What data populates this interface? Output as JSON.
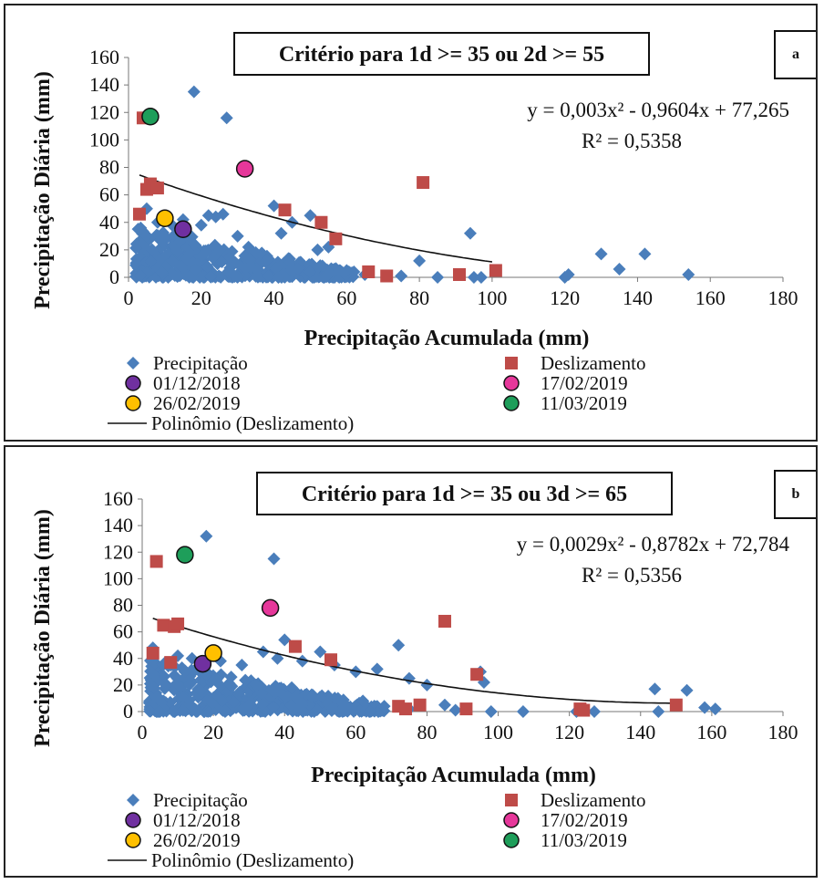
{
  "chart_data": [
    {
      "type": "scatter",
      "panel_letter": "a",
      "title": "Critério para 1d >= 35 ou 2d >= 55",
      "xlabel": "Precipitação Acumulada (mm)",
      "ylabel": "Precipitação Diária (mm)",
      "xlim": [
        0,
        180
      ],
      "ylim": [
        0,
        160
      ],
      "xticks": [
        0,
        20,
        40,
        60,
        80,
        100,
        120,
        140,
        160,
        180
      ],
      "yticks": [
        0,
        20,
        40,
        60,
        80,
        100,
        120,
        140,
        160
      ],
      "equation": "y = 0,003x² - 0,9604x + 77,265",
      "r2": "R² = 0,5358",
      "trend": {
        "name": "Polinômio (Deslizamento)",
        "a": 0.003,
        "b": -0.9604,
        "c": 77.265,
        "xrange": [
          3,
          100
        ]
      },
      "series": [
        {
          "name": "Precipitação",
          "marker": "diamond",
          "color": "#4a7ebb",
          "outliers": [
            [
              18,
              135
            ],
            [
              27,
              116
            ],
            [
              5,
              50
            ],
            [
              8,
              40
            ],
            [
              12,
              38
            ],
            [
              15,
              42
            ],
            [
              20,
              38
            ],
            [
              22,
              45
            ],
            [
              24,
              44
            ],
            [
              26,
              46
            ],
            [
              30,
              30
            ],
            [
              33,
              22
            ],
            [
              35,
              18
            ],
            [
              40,
              52
            ],
            [
              42,
              32
            ],
            [
              45,
              40
            ],
            [
              50,
              45
            ],
            [
              52,
              20
            ],
            [
              55,
              22
            ],
            [
              58,
              5
            ],
            [
              60,
              5
            ],
            [
              62,
              4
            ],
            [
              80,
              12
            ],
            [
              94,
              32
            ],
            [
              95,
              0
            ],
            [
              97,
              0
            ],
            [
              120,
              0
            ],
            [
              121,
              2
            ],
            [
              130,
              17
            ],
            [
              135,
              6
            ],
            [
              142,
              17
            ],
            [
              154,
              2
            ],
            [
              10,
              30
            ],
            [
              14,
              26
            ],
            [
              18,
              24
            ],
            [
              25,
              20
            ],
            [
              38,
              12
            ],
            [
              45,
              6
            ],
            [
              50,
              4
            ],
            [
              65,
              2
            ],
            [
              75,
              1
            ],
            [
              85,
              0
            ]
          ],
          "cloud": {
            "xmax": 60,
            "ymax": 40
          }
        },
        {
          "name": "Deslizamento",
          "marker": "square",
          "color": "#be4b48",
          "points": [
            [
              3,
              46
            ],
            [
              4,
              116
            ],
            [
              5,
              64
            ],
            [
              6,
              68
            ],
            [
              8,
              65
            ],
            [
              43,
              49
            ],
            [
              53,
              40
            ],
            [
              57,
              28
            ],
            [
              66,
              4
            ],
            [
              71,
              1
            ],
            [
              81,
              69
            ],
            [
              91,
              2
            ],
            [
              101,
              5
            ]
          ]
        },
        {
          "name": "01/12/2018",
          "marker": "circle",
          "color": "#7030a0",
          "points": [
            [
              15,
              35
            ]
          ]
        },
        {
          "name": "17/02/2019",
          "marker": "circle",
          "color": "#e6379a",
          "points": [
            [
              32,
              79
            ]
          ]
        },
        {
          "name": "26/02/2019",
          "marker": "circle",
          "color": "#ffc000",
          "points": [
            [
              10,
              43
            ]
          ]
        },
        {
          "name": "11/03/2019",
          "marker": "circle",
          "color": "#1e9e5a",
          "points": [
            [
              6,
              117
            ]
          ]
        }
      ]
    },
    {
      "type": "scatter",
      "panel_letter": "b",
      "title": "Critério para 1d >= 35 ou 3d >= 65",
      "xlabel": "Precipitação Acumulada (mm)",
      "ylabel": "Precipitação Diária (mm)",
      "xlim": [
        0,
        180
      ],
      "ylim": [
        0,
        160
      ],
      "xticks": [
        0,
        20,
        40,
        60,
        80,
        100,
        120,
        140,
        160,
        180
      ],
      "yticks": [
        0,
        20,
        40,
        60,
        80,
        100,
        120,
        140,
        160
      ],
      "equation": "y = 0,0029x² - 0,8782x + 72,784",
      "r2": "R² = 0,5356",
      "trend": {
        "name": "Polinômio (Deslizamento)",
        "a": 0.0029,
        "b": -0.8782,
        "c": 72.784,
        "xrange": [
          3,
          150
        ]
      },
      "series": [
        {
          "name": "Precipitação",
          "marker": "diamond",
          "color": "#4a7ebb",
          "outliers": [
            [
              18,
              132
            ],
            [
              37,
              115
            ],
            [
              3,
              48
            ],
            [
              10,
              42
            ],
            [
              14,
              40
            ],
            [
              22,
              38
            ],
            [
              28,
              35
            ],
            [
              34,
              45
            ],
            [
              38,
              40
            ],
            [
              40,
              54
            ],
            [
              45,
              38
            ],
            [
              50,
              45
            ],
            [
              54,
              35
            ],
            [
              60,
              30
            ],
            [
              66,
              32
            ],
            [
              72,
              50
            ],
            [
              75,
              25
            ],
            [
              80,
              20
            ],
            [
              85,
              5
            ],
            [
              95,
              30
            ],
            [
              96,
              22
            ],
            [
              98,
              0
            ],
            [
              107,
              0
            ],
            [
              122,
              0
            ],
            [
              127,
              0
            ],
            [
              144,
              17
            ],
            [
              145,
              0
            ],
            [
              153,
              16
            ],
            [
              158,
              3
            ],
            [
              161,
              2
            ],
            [
              12,
              30
            ],
            [
              18,
              28
            ],
            [
              25,
              26
            ],
            [
              32,
              20
            ],
            [
              42,
              18
            ],
            [
              48,
              12
            ],
            [
              55,
              10
            ],
            [
              62,
              8
            ],
            [
              68,
              4
            ],
            [
              75,
              2
            ],
            [
              88,
              1
            ]
          ],
          "cloud": {
            "xmax": 66,
            "ymax": 40
          }
        },
        {
          "name": "Deslizamento",
          "marker": "square",
          "color": "#be4b48",
          "points": [
            [
              3,
              44
            ],
            [
              4,
              113
            ],
            [
              6,
              65
            ],
            [
              8,
              37
            ],
            [
              9,
              64
            ],
            [
              10,
              66
            ],
            [
              43,
              49
            ],
            [
              53,
              39
            ],
            [
              72,
              4
            ],
            [
              74,
              2
            ],
            [
              78,
              5
            ],
            [
              85,
              68
            ],
            [
              91,
              2
            ],
            [
              94,
              28
            ],
            [
              123,
              2
            ],
            [
              124,
              1
            ],
            [
              150,
              5
            ]
          ]
        },
        {
          "name": "01/12/2018",
          "marker": "circle",
          "color": "#7030a0",
          "points": [
            [
              17,
              36
            ]
          ]
        },
        {
          "name": "17/02/2019",
          "marker": "circle",
          "color": "#e6379a",
          "points": [
            [
              36,
              78
            ]
          ]
        },
        {
          "name": "26/02/2019",
          "marker": "circle",
          "color": "#ffc000",
          "points": [
            [
              20,
              44
            ]
          ]
        },
        {
          "name": "11/03/2019",
          "marker": "circle",
          "color": "#1e9e5a",
          "points": [
            [
              12,
              118
            ]
          ]
        }
      ]
    }
  ]
}
